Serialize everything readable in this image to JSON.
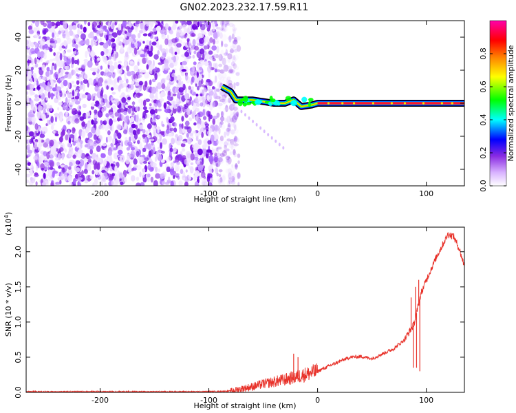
{
  "title": "GN02.2023.232.17.59.R11",
  "colors": {
    "snr_line": "#e8322a",
    "noise_purple": "#7a1fe6",
    "colormap": [
      "#ffffff",
      "#d9b3ff",
      "#8a2be2",
      "#0000ff",
      "#00ffff",
      "#00ff00",
      "#ffff00",
      "#ff8000",
      "#ff0000",
      "#ff00aa"
    ]
  },
  "chart_data": [
    {
      "type": "heatmap",
      "xlabel": "Height of straight line (km)",
      "ylabel": "Frequency (Hz)",
      "xlim": [
        -268,
        135
      ],
      "ylim": [
        -50,
        50
      ],
      "xticks": [
        -200,
        -100,
        0,
        100
      ],
      "yticks": [
        -40,
        -20,
        0,
        20,
        40
      ],
      "colorbar": {
        "label": "Normalized spectral amplitude",
        "range": [
          0,
          1
        ],
        "ticks": [
          "0.0",
          "0.2",
          "0.4",
          "0.6",
          "0.8"
        ]
      },
      "noise_region_x": [
        -268,
        -80
      ],
      "signal_trace": [
        {
          "x": -88,
          "y": 10
        },
        {
          "x": -80,
          "y": 7
        },
        {
          "x": -75,
          "y": 2
        },
        {
          "x": -60,
          "y": 2
        },
        {
          "x": -50,
          "y": 1
        },
        {
          "x": -40,
          "y": 0
        },
        {
          "x": -30,
          "y": 0
        },
        {
          "x": -22,
          "y": 2
        },
        {
          "x": -15,
          "y": -2
        },
        {
          "x": -5,
          "y": -1
        },
        {
          "x": 0,
          "y": 0
        },
        {
          "x": 135,
          "y": 0
        }
      ]
    },
    {
      "type": "line",
      "xlabel": "Height of straight line (km)",
      "ylabel": "SNR (10 * v/v)",
      "yscale_label": "(x10",
      "yscale_exp": "4",
      "yscale_close": ")",
      "xlim": [
        -268,
        135
      ],
      "ylim": [
        0,
        2.35
      ],
      "xticks": [
        -200,
        -100,
        0,
        100
      ],
      "yticks": [
        "0.0",
        "0.5",
        "1.0",
        "1.5",
        "2.0"
      ],
      "series": [
        {
          "x": [
            -268,
            -200,
            -150,
            -100,
            -80,
            -70,
            -60,
            -50,
            -40,
            -30,
            -20,
            -10,
            0,
            10,
            20,
            30,
            40,
            50,
            60,
            70,
            80,
            85,
            88,
            90,
            92,
            95,
            100,
            110,
            120,
            125,
            130,
            135
          ],
          "y": [
            0.01,
            0.01,
            0.01,
            0.01,
            0.02,
            0.05,
            0.08,
            0.12,
            0.15,
            0.18,
            0.22,
            0.26,
            0.3,
            0.37,
            0.44,
            0.5,
            0.51,
            0.48,
            0.55,
            0.62,
            0.75,
            0.88,
            0.95,
            1.05,
            1.2,
            1.4,
            1.6,
            1.95,
            2.25,
            2.22,
            2.05,
            1.8
          ]
        }
      ],
      "spikes": [
        {
          "x": -22,
          "y": 0.55
        },
        {
          "x": -18,
          "y": 0.5
        },
        {
          "x": 86,
          "y": 1.35
        },
        {
          "x": 88,
          "y": 0.35
        },
        {
          "x": 90,
          "y": 1.5
        },
        {
          "x": 91,
          "y": 0.35
        },
        {
          "x": 93,
          "y": 1.6
        },
        {
          "x": 94,
          "y": 0.3
        }
      ]
    }
  ]
}
